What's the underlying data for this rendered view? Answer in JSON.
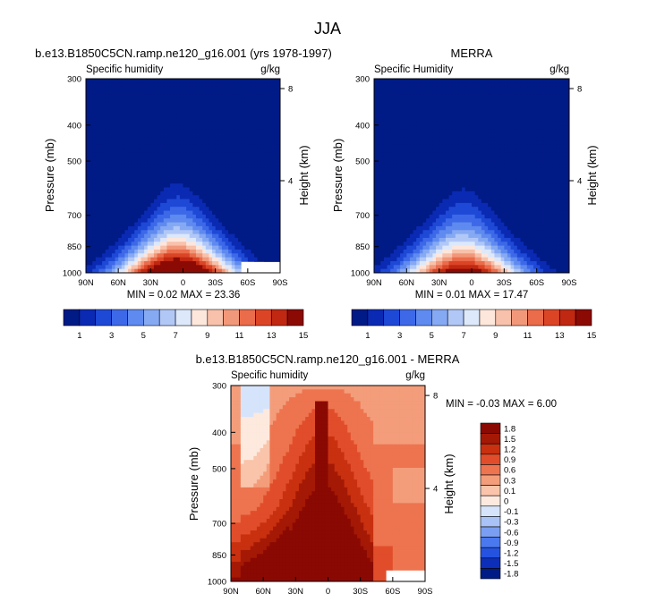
{
  "figure": {
    "title": "JJA"
  },
  "colors": {
    "humidity_scale": [
      "#001a86",
      "#0a2ab3",
      "#1e49d6",
      "#3d69e8",
      "#5f8aef",
      "#86a9f3",
      "#b1c8f7",
      "#dde8fb",
      "#fde6dc",
      "#f8c1ab",
      "#f2987a",
      "#ea6c4b",
      "#db4526",
      "#c02811",
      "#8c0a04"
    ],
    "diff_scale": [
      "#001a86",
      "#0d2eb8",
      "#2553df",
      "#4a78ee",
      "#7a9ff2",
      "#a9c3f6",
      "#d6e4fb",
      "#fde9dd",
      "#f9c4aa",
      "#f49d7b",
      "#ed744f",
      "#e14d2a",
      "#c8300f",
      "#a41905",
      "#8a0903"
    ],
    "missing": "#ffffff"
  },
  "chart_data": [
    {
      "type": "heatmap",
      "title": "b.e13.B1850C5CN.ramp.ne120_g16.001 (yrs 1978-1997)",
      "subtitle_left": "Specific humidity",
      "subtitle_right": "g/kg",
      "ylabel": "Pressure (mb)",
      "ylabel_right": "Height (km)",
      "x_ticks": [
        "90N",
        "60N",
        "30N",
        "0",
        "30S",
        "60S",
        "90S"
      ],
      "x_range": [
        90,
        -90
      ],
      "y_ticks": [
        "300",
        "400",
        "500",
        "700",
        "850",
        "1000"
      ],
      "y_tick_values": [
        300,
        400,
        500,
        700,
        850,
        1000
      ],
      "y_range": [
        300,
        1000
      ],
      "y_right_ticks": [
        "8",
        "4"
      ],
      "y_right_tick_values": [
        8,
        4
      ],
      "stats": "MIN =  0.02  MAX = 23.36",
      "min": 0.02,
      "max": 23.36,
      "peak_surface": 20,
      "center_lat": 5,
      "missing_box": {
        "lat": [
          -54,
          -90
        ],
        "p": [
          935,
          1000
        ]
      },
      "colorbar": {
        "levels": [
          1,
          2,
          3,
          4,
          5,
          6,
          7,
          8,
          9,
          10,
          11,
          12,
          13,
          14,
          15
        ],
        "labels": [
          "1",
          "3",
          "5",
          "7",
          "9",
          "11",
          "13",
          "15"
        ]
      }
    },
    {
      "type": "heatmap",
      "title": "MERRA",
      "subtitle_left": "Specific Humidity",
      "subtitle_right": "g/kg",
      "ylabel": "Pressure (mb)",
      "ylabel_right": "Height (km)",
      "x_ticks": [
        "90N",
        "60N",
        "30N",
        "0",
        "30S",
        "60S",
        "90S"
      ],
      "x_range": [
        90,
        -90
      ],
      "y_ticks": [
        "300",
        "400",
        "500",
        "700",
        "850",
        "1000"
      ],
      "y_tick_values": [
        300,
        400,
        500,
        700,
        850,
        1000
      ],
      "y_range": [
        300,
        1000
      ],
      "y_right_ticks": [
        "8",
        "4"
      ],
      "y_right_tick_values": [
        8,
        4
      ],
      "stats": "MIN =  0.01  MAX = 17.47",
      "min": 0.01,
      "max": 17.47,
      "peak_surface": 16.5,
      "center_lat": 8,
      "colorbar": {
        "levels": [
          1,
          2,
          3,
          4,
          5,
          6,
          7,
          8,
          9,
          10,
          11,
          12,
          13,
          14,
          15
        ],
        "labels": [
          "1",
          "3",
          "5",
          "7",
          "9",
          "11",
          "13",
          "15"
        ]
      }
    },
    {
      "type": "heatmap",
      "title": "b.e13.B1850C5CN.ramp.ne120_g16.001 - MERRA",
      "subtitle_left": "Specific humidity",
      "subtitle_right": "g/kg",
      "ylabel": "Pressure (mb)",
      "ylabel_right": "Height (km)",
      "x_ticks": [
        "90N",
        "60N",
        "30N",
        "0",
        "30S",
        "60S",
        "90S"
      ],
      "x_range": [
        90,
        -90
      ],
      "y_ticks": [
        "300",
        "400",
        "500",
        "700",
        "850",
        "1000"
      ],
      "y_tick_values": [
        300,
        400,
        500,
        700,
        850,
        1000
      ],
      "y_range": [
        300,
        1000
      ],
      "y_right_ticks": [
        "8",
        "4"
      ],
      "y_right_tick_values": [
        8,
        4
      ],
      "stats": "MIN = -0.03  MAX =   6.00",
      "min": -0.03,
      "max": 6.0,
      "missing_box": {
        "lat": [
          -54,
          -90
        ],
        "p": [
          935,
          1000
        ]
      },
      "colorbar": {
        "levels": [
          -1.8,
          -1.5,
          -1.2,
          -0.9,
          -0.6,
          -0.3,
          -0.1,
          0,
          0.1,
          0.3,
          0.6,
          0.9,
          1.2,
          1.5,
          1.8
        ],
        "labels": [
          "1.8",
          "1.5",
          "1.2",
          "0.9",
          "0.6",
          "0.3",
          "0.1",
          "0",
          "-0.1",
          "-0.3",
          "-0.6",
          "-0.9",
          "-1.2",
          "-1.5",
          "-1.8"
        ]
      }
    }
  ]
}
